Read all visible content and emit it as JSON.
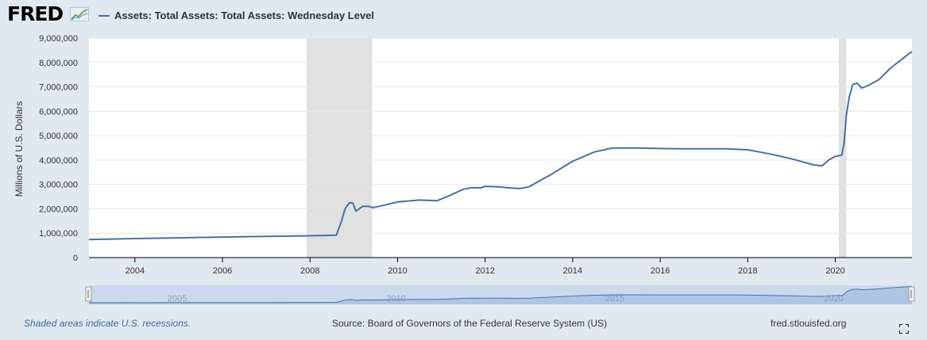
{
  "header": {
    "logo_text": "FRED",
    "legend_label": "Assets: Total Assets: Total Assets: Wednesday Level",
    "series_color": "#4572a7"
  },
  "footer": {
    "recession_note": "Shaded areas indicate U.S. recessions.",
    "source": "Source: Board of Governors of the Federal Reserve System (US)",
    "url": "fred.stlouisfed.org"
  },
  "icons": {
    "logo": "fred-logo-graph-icon",
    "fullscreen": "fullscreen-icon"
  },
  "chart_data": {
    "type": "line",
    "title": "",
    "xlabel": "",
    "ylabel": "Millions of U.S. Dollars",
    "xlim": [
      2002.95,
      2021.75
    ],
    "ylim": [
      0,
      9000000
    ],
    "grid": true,
    "legend_position": "top",
    "x_ticks": [
      2004,
      2006,
      2008,
      2010,
      2012,
      2014,
      2016,
      2018,
      2020
    ],
    "x_tick_labels": [
      "2004",
      "2006",
      "2008",
      "2010",
      "2012",
      "2014",
      "2016",
      "2018",
      "2020"
    ],
    "y_ticks": [
      0,
      1000000,
      2000000,
      3000000,
      4000000,
      5000000,
      6000000,
      7000000,
      8000000,
      9000000
    ],
    "y_tick_labels": [
      "0",
      "1,000,000",
      "2,000,000",
      "3,000,000",
      "4,000,000",
      "5,000,000",
      "6,000,000",
      "7,000,000",
      "8,000,000",
      "9,000,000"
    ],
    "recessions": [
      [
        2007.92,
        2009.42
      ],
      [
        2020.08,
        2020.25
      ]
    ],
    "navigator_labels": [
      "2005",
      "2010",
      "2015",
      "2020"
    ],
    "series": [
      {
        "name": "Assets: Total Assets: Total Assets: Wednesday Level",
        "color": "#4572a7",
        "x": [
          2002.95,
          2003.5,
          2004.0,
          2005.0,
          2006.0,
          2007.0,
          2007.9,
          2008.2,
          2008.6,
          2008.72,
          2008.8,
          2008.9,
          2008.98,
          2009.05,
          2009.2,
          2009.35,
          2009.42,
          2009.5,
          2009.7,
          2010.0,
          2010.5,
          2010.9,
          2011.2,
          2011.5,
          2011.7,
          2011.9,
          2012.0,
          2012.3,
          2012.6,
          2012.8,
          2013.0,
          2013.5,
          2014.0,
          2014.5,
          2014.9,
          2015.5,
          2016.0,
          2016.5,
          2017.0,
          2017.5,
          2018.0,
          2018.5,
          2019.0,
          2019.5,
          2019.7,
          2019.85,
          2020.0,
          2020.15,
          2020.2,
          2020.25,
          2020.32,
          2020.4,
          2020.5,
          2020.6,
          2020.75,
          2021.0,
          2021.25,
          2021.5,
          2021.75
        ],
        "y": [
          740000,
          760000,
          780000,
          810000,
          840000,
          870000,
          890000,
          900000,
          920000,
          1500000,
          2000000,
          2250000,
          2230000,
          1900000,
          2100000,
          2100000,
          2050000,
          2070000,
          2150000,
          2280000,
          2360000,
          2330000,
          2550000,
          2800000,
          2870000,
          2860000,
          2920000,
          2900000,
          2850000,
          2830000,
          2900000,
          3400000,
          3950000,
          4330000,
          4490000,
          4490000,
          4470000,
          4460000,
          4460000,
          4460000,
          4420000,
          4250000,
          4050000,
          3800000,
          3760000,
          4000000,
          4150000,
          4200000,
          4700000,
          5800000,
          6600000,
          7100000,
          7150000,
          6950000,
          7050000,
          7300000,
          7750000,
          8100000,
          8450000
        ]
      }
    ]
  }
}
